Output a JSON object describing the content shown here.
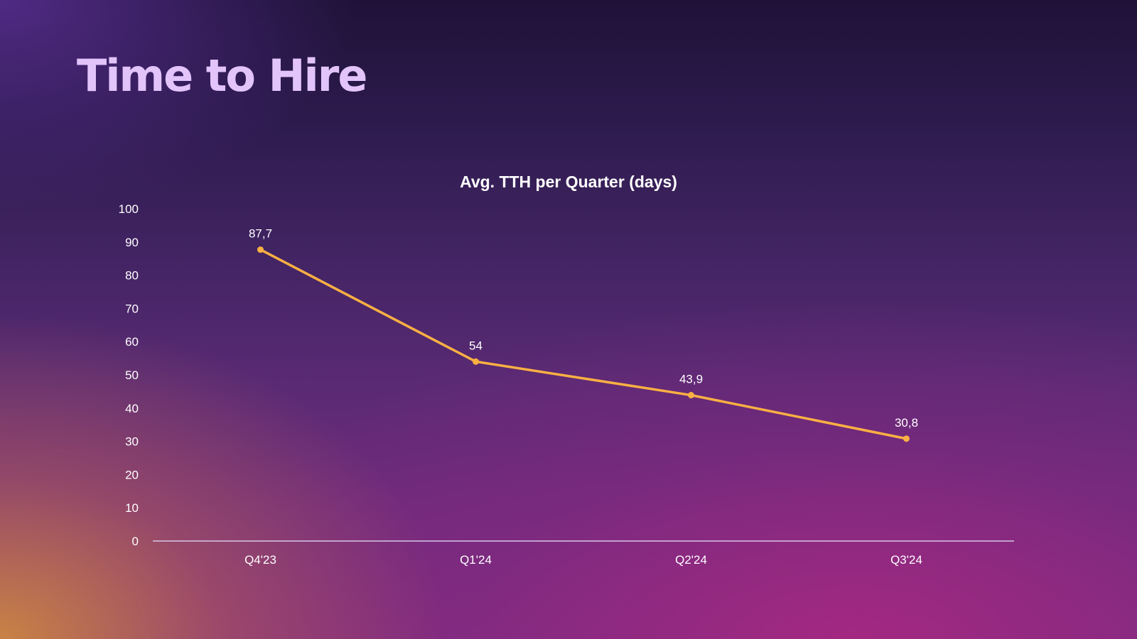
{
  "slide": {
    "title": "Time to Hire"
  },
  "chart_data": {
    "type": "line",
    "title": "Avg. TTH per Quarter (days)",
    "xlabel": "",
    "ylabel": "",
    "categories": [
      "Q4'23",
      "Q1'24",
      "Q2'24",
      "Q3'24"
    ],
    "series": [
      {
        "values": [
          87.7,
          54,
          43.9,
          30.8
        ],
        "labels": [
          "87,7",
          "54",
          "43,9",
          "30,8"
        ],
        "color": "#f9b043"
      }
    ],
    "ylim": [
      0,
      100
    ],
    "yticks": [
      0,
      10,
      20,
      30,
      40,
      50,
      60,
      70,
      80,
      90,
      100
    ],
    "grid": false,
    "legend": "none",
    "axis_color": "#d8c8e8"
  }
}
